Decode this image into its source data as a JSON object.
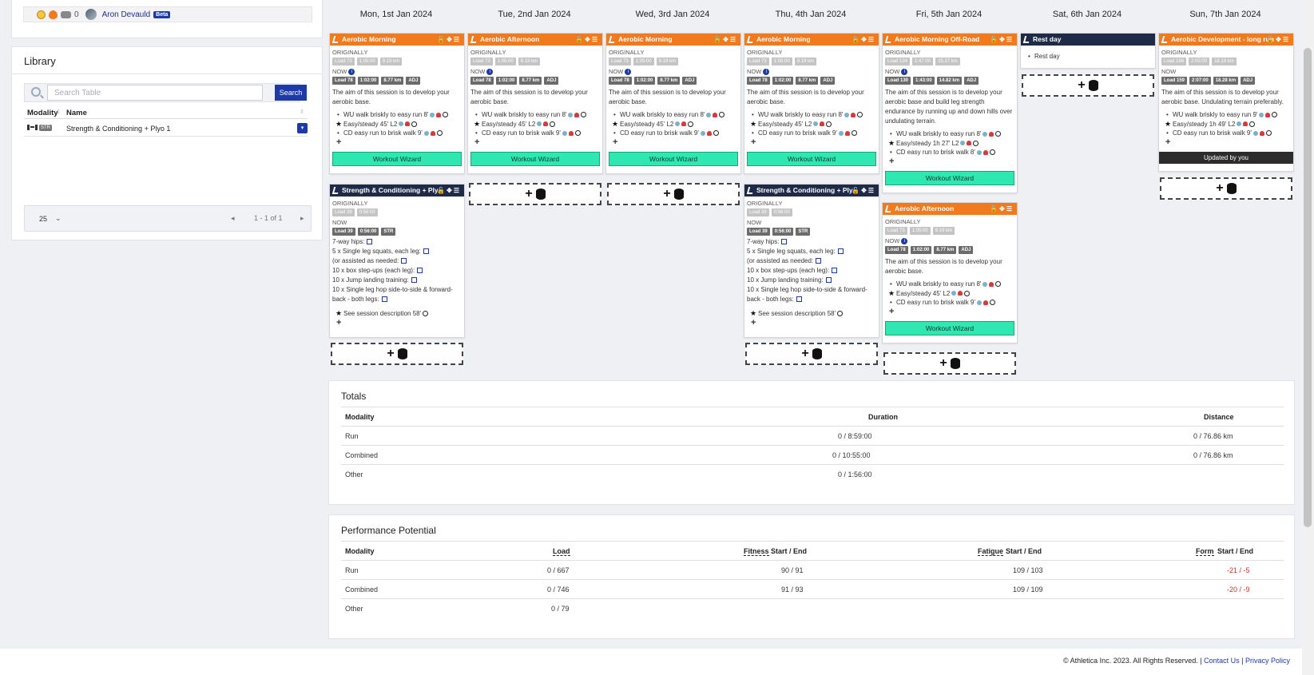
{
  "user": {
    "count": "0",
    "name": "Aron Devauld",
    "badge": "Beta"
  },
  "library": {
    "title": "Library",
    "search_placeholder": "Search Table",
    "search_button": "Search",
    "columns": [
      "Modality",
      "Name"
    ],
    "rows": [
      {
        "badge": "STR",
        "name": "Strength & Conditioning + Plyo 1"
      }
    ],
    "page_size": "25",
    "page_text": "1 - 1 of 1"
  },
  "days": [
    "Mon, 1st Jan 2024",
    "Tue, 2nd Jan 2024",
    "Wed, 3rd Jan 2024",
    "Thu, 4th Jan 2024",
    "Fri, 5th Jan 2024",
    "Sat, 6th Jan 2024",
    "Sun, 7th Jan 2024"
  ],
  "labels": {
    "originally": "ORIGINALLY",
    "now": "NOW",
    "wizard": "Workout Wizard",
    "updated": "Updated by you"
  },
  "cards": {
    "aerobic_morning": {
      "title": "Aerobic Morning",
      "orig": [
        "Load 73",
        "1:05:00",
        "9.19 km"
      ],
      "now": [
        "Load 78",
        "1:02:00",
        "8.77 km",
        "ADJ"
      ],
      "desc": "The aim of this session is to develop your aerobic base.",
      "steps": [
        "WU walk briskly to easy run 8'",
        "Easy/steady 45' L2",
        "CD easy run to brisk walk 9'"
      ]
    },
    "aerobic_afternoon": {
      "title": "Aerobic Afternoon",
      "orig": [
        "Load 73",
        "1:05:00",
        "9.19 km"
      ],
      "now": [
        "Load 78",
        "1:02:00",
        "8.77 km",
        "ADJ"
      ],
      "desc": "The aim of this session is to develop your aerobic base.",
      "steps": [
        "WU walk briskly to easy run 8'",
        "Easy/steady 45' L2",
        "CD easy run to brisk walk 9'"
      ]
    },
    "strength": {
      "title": "Strength & Conditioning + Ply...",
      "orig": [
        "Load 39",
        "0:56:00"
      ],
      "now": [
        "Load 39",
        "0:56:00",
        "STR"
      ],
      "lines": [
        "7-way hips:",
        "5 x Single leg squats, each leg:",
        "(or assisted as needed:",
        "10 x box step-ups (each leg):",
        "10 x Jump landing training:",
        "10 x Single leg hop side-to-side & forward-",
        "back - both legs:"
      ],
      "steps": [
        "See session description 58'"
      ]
    },
    "offroad": {
      "title": "Aerobic Morning Off-Road",
      "orig": [
        "Load 134",
        "1:47:00",
        "15.37 km"
      ],
      "now": [
        "Load 130",
        "1:43:00",
        "14.82 km",
        "ADJ"
      ],
      "desc": "The aim of this session is to develop your aerobic base and build leg strength endurance by running up and down hills over undulating terrain.",
      "steps": [
        "WU walk briskly to easy run 8'",
        "Easy/steady 1h 27' L2",
        "CD easy run to brisk walk 8'"
      ]
    },
    "rest": {
      "title": "Rest day",
      "item": "Rest day"
    },
    "longrun": {
      "title": "Aerobic Development - long run",
      "orig": [
        "Load 166",
        "2:05:00",
        "18.19 km"
      ],
      "now": [
        "Load 159",
        "2:07:00",
        "18.28 km",
        "ADJ"
      ],
      "desc": "The aim of this session is to develop your aerobic base. Undulating terrain preferably.",
      "steps": [
        "WU walk briskly to easy run 9'",
        "Easy/steady 1h 49' L2",
        "CD easy run to brisk walk 9'"
      ]
    }
  },
  "totals": {
    "title": "Totals",
    "headers": [
      "Modality",
      "Duration",
      "Distance"
    ],
    "rows": [
      {
        "modality": "Run",
        "duration": "0 / 8:59:00",
        "distance": "0 / 76.86 km"
      },
      {
        "modality": "Combined",
        "duration": "0 / 10:55:00",
        "distance": "0 / 76.86 km"
      },
      {
        "modality": "Other",
        "duration": "0 / 1:56:00",
        "distance": ""
      }
    ]
  },
  "performance": {
    "title": "Performance Potential",
    "headers": [
      "Modality",
      "Load",
      "Fitness",
      "Start / End",
      "Fatigue",
      "Start / End",
      "Form",
      "Start / End"
    ],
    "rows": [
      {
        "modality": "Run",
        "load": "0 / 667",
        "fitness": "90 / 91",
        "fatigue": "109 / 103",
        "form": "-21 / -5"
      },
      {
        "modality": "Combined",
        "load": "0 / 746",
        "fitness": "91 / 93",
        "fatigue": "109 / 109",
        "form": "-20 / -9"
      },
      {
        "modality": "Other",
        "load": "0 / 79",
        "fitness": "",
        "fatigue": "",
        "form": ""
      }
    ]
  },
  "footer": {
    "copyright": "© Athletica Inc. 2023. All Rights Reserved.",
    "contact": "Contact Us",
    "privacy": "Privacy Policy"
  }
}
